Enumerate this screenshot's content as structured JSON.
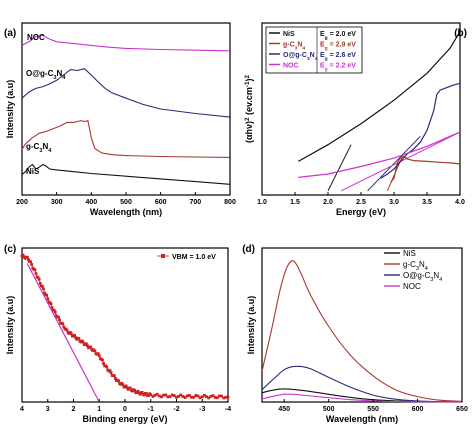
{
  "chart_data": [
    {
      "panel": "(a)",
      "type": "line",
      "xlabel": "Wavelength (nm)",
      "ylabel": "Intensity (a.u)",
      "xlim": [
        200,
        800
      ],
      "xticks": [
        "200",
        "300",
        "400",
        "500",
        "600",
        "700",
        "800"
      ],
      "series": [
        {
          "name": "NOC",
          "color": "#cc33cc",
          "x": [
            200,
            220,
            240,
            260,
            280,
            300,
            350,
            400,
            450,
            500,
            600,
            700,
            800
          ],
          "y": [
            8.35,
            8.55,
            8.85,
            8.9,
            8.7,
            8.55,
            8.45,
            8.35,
            8.25,
            8.18,
            8.12,
            8.08,
            8.05
          ]
        },
        {
          "name": "O@g-C3N4",
          "color": "#2a2a7a",
          "x": [
            200,
            220,
            240,
            260,
            280,
            300,
            320,
            340,
            360,
            380,
            400,
            420,
            440,
            460,
            500,
            550,
            600,
            700,
            800
          ],
          "y": [
            5.4,
            5.75,
            5.95,
            6.05,
            6.2,
            6.4,
            6.7,
            7.0,
            6.95,
            7.05,
            6.7,
            6.3,
            5.95,
            5.7,
            5.4,
            5.05,
            4.8,
            4.55,
            4.35
          ]
        },
        {
          "name": "g-C3N4",
          "color": "#a33a2a",
          "x": [
            200,
            210,
            230,
            250,
            270,
            290,
            310,
            330,
            350,
            370,
            380,
            390,
            400,
            410,
            430,
            460,
            500,
            600,
            700,
            800
          ],
          "y": [
            2.55,
            2.85,
            3.2,
            3.45,
            3.55,
            3.7,
            3.85,
            4.05,
            4.05,
            4.15,
            4.1,
            4.15,
            3.2,
            2.6,
            2.35,
            2.25,
            2.2,
            2.15,
            2.12,
            2.1
          ]
        },
        {
          "name": "NiS",
          "color": "#111111",
          "x": [
            200,
            210,
            220,
            230,
            240,
            250,
            260,
            270,
            280,
            300,
            350,
            400,
            500,
            600,
            700,
            800
          ],
          "y": [
            1.15,
            1.3,
            1.55,
            1.7,
            1.45,
            1.55,
            1.7,
            1.6,
            1.45,
            1.4,
            1.3,
            1.2,
            1.05,
            0.9,
            0.75,
            0.6
          ]
        }
      ],
      "curve_labels": [
        "NOC",
        "O@g-C3N4",
        "g-C3N4",
        "NiS"
      ]
    },
    {
      "panel": "(b)",
      "type": "line",
      "xlabel": "Energy (eV)",
      "ylabel": "(αhν)² (ev.cm⁻¹)²",
      "xlim": [
        1.0,
        4.0
      ],
      "xticks": [
        "1.0",
        "1.5",
        "2.0",
        "2.5",
        "3.0",
        "3.5",
        "4.0"
      ],
      "legend": [
        {
          "name": "NiS",
          "eg": "Eg = 2.0 eV",
          "color": "#111111"
        },
        {
          "name": "g-C3N4",
          "eg": "Eg = 2.9 eV",
          "color": "#a33a2a"
        },
        {
          "name": "O@g-C3N4",
          "eg": "Eg = 2.6 eV",
          "color": "#2a2a7a"
        },
        {
          "name": "NOC",
          "eg": "Eg = 2.2 eV",
          "color": "#cc33cc"
        }
      ],
      "series": [
        {
          "name": "NiS",
          "color": "#111111",
          "x": [
            1.55,
            2.0,
            2.5,
            3.0,
            3.5,
            3.85,
            4.0
          ],
          "y": [
            3.5,
            5.5,
            8.0,
            10.8,
            14.0,
            17.0,
            19.0
          ]
        },
        {
          "name": "g-C3N4",
          "color": "#a33a2a",
          "x": [
            2.95,
            3.0,
            3.05,
            3.1,
            3.15,
            3.2,
            3.3,
            3.5,
            3.7,
            3.9,
            4.0
          ],
          "y": [
            1.0,
            1.5,
            3.3,
            4.0,
            4.1,
            3.8,
            3.6,
            3.5,
            3.4,
            3.3,
            3.2
          ]
        },
        {
          "name": "O@g-C3N4",
          "color": "#2a2a7a",
          "x": [
            2.8,
            2.9,
            3.0,
            3.1,
            3.2,
            3.3,
            3.4,
            3.5,
            3.6,
            3.65,
            3.7,
            3.8,
            3.9,
            4.0
          ],
          "y": [
            1.5,
            2.0,
            2.6,
            3.5,
            4.4,
            5.0,
            5.8,
            7.2,
            9.5,
            11.5,
            12.0,
            12.3,
            12.6,
            12.8
          ]
        },
        {
          "name": "NOC",
          "color": "#cc33cc",
          "x": [
            1.55,
            2.0,
            2.5,
            3.0,
            3.5,
            4.0
          ],
          "y": [
            1.6,
            2.0,
            2.9,
            3.9,
            5.3,
            7.0
          ]
        }
      ],
      "tangent_lines": [
        {
          "name": "NiS",
          "color": "#111111",
          "x": [
            2.0,
            2.35
          ],
          "y": [
            0,
            5.5
          ]
        },
        {
          "name": "g-C3N4",
          "color": "#a33a2a",
          "x": [
            2.9,
            3.15
          ],
          "y": [
            0,
            4.5
          ]
        },
        {
          "name": "O@g-C3N4",
          "color": "#2a2a7a",
          "x": [
            2.6,
            3.4
          ],
          "y": [
            0,
            6.5
          ]
        },
        {
          "name": "NOC",
          "color": "#cc33cc",
          "x": [
            2.2,
            4.0
          ],
          "y": [
            0,
            7.0
          ]
        }
      ]
    },
    {
      "panel": "(c)",
      "type": "scatter",
      "xlabel": "Binding energy (eV)",
      "ylabel": "Intensity (a.u)",
      "xlim": [
        4,
        -4
      ],
      "xticks": [
        "4",
        "3",
        "2",
        "1",
        "0",
        "-1",
        "-2",
        "-3",
        "-4"
      ],
      "legend": "VBM = 1.0 eV",
      "series": [
        {
          "name": "VBM = 1.0 eV",
          "color": "#cc2222",
          "x": [
            4.0,
            3.75,
            3.5,
            3.25,
            3.0,
            2.75,
            2.5,
            2.25,
            2.0,
            1.75,
            1.5,
            1.25,
            1.0,
            0.75,
            0.5,
            0.25,
            0.0,
            -0.25,
            -0.5,
            -0.75,
            -1.0,
            -1.5,
            -2.0,
            -2.5,
            -3.0,
            -3.5,
            -4.0
          ],
          "y": [
            9.5,
            9.3,
            8.5,
            7.6,
            6.7,
            5.9,
            5.2,
            4.6,
            4.3,
            4.0,
            3.7,
            3.4,
            3.0,
            2.3,
            1.8,
            1.3,
            1.0,
            0.8,
            0.62,
            0.52,
            0.45,
            0.4,
            0.38,
            0.36,
            0.35,
            0.34,
            0.33
          ]
        }
      ],
      "fit_line": {
        "color": "#cc33cc",
        "x": [
          3.8,
          1.0
        ],
        "y": [
          9.0,
          0
        ]
      }
    },
    {
      "panel": "(d)",
      "type": "line",
      "xlabel": "Wavelength (nm)",
      "ylabel": "Intensity (a.u)",
      "xlim": [
        425,
        650
      ],
      "xticks": [
        "450",
        "500",
        "550",
        "600",
        "650"
      ],
      "series": [
        {
          "name": "NiS",
          "color": "#111111",
          "x": [
            425,
            440,
            450,
            460,
            475,
            500,
            525,
            550,
            575,
            600,
            625,
            650
          ],
          "y": [
            0.6,
            0.8,
            0.85,
            0.82,
            0.72,
            0.5,
            0.3,
            0.15,
            0.07,
            0.03,
            0.01,
            0.0
          ]
        },
        {
          "name": "g-C3N4",
          "color": "#a33a2a",
          "x": [
            425,
            435,
            445,
            452,
            458,
            463,
            470,
            480,
            500,
            525,
            550,
            575,
            600,
            625,
            650
          ],
          "y": [
            2.0,
            4.5,
            7.2,
            8.6,
            9.15,
            9.0,
            8.2,
            6.9,
            4.9,
            3.0,
            1.7,
            0.8,
            0.35,
            0.12,
            0.04
          ]
        },
        {
          "name": "O@g-C3N4",
          "color": "#2a2a7a",
          "x": [
            425,
            440,
            450,
            460,
            470,
            480,
            500,
            525,
            550,
            575,
            600,
            625,
            650
          ],
          "y": [
            0.8,
            1.6,
            2.1,
            2.3,
            2.3,
            2.15,
            1.6,
            0.95,
            0.45,
            0.18,
            0.07,
            0.02,
            0.0
          ]
        },
        {
          "name": "NOC",
          "color": "#cc33cc",
          "x": [
            425,
            440,
            450,
            460,
            475,
            500,
            525,
            550,
            575,
            600,
            625,
            650
          ],
          "y": [
            0.2,
            0.4,
            0.5,
            0.5,
            0.42,
            0.28,
            0.15,
            0.07,
            0.03,
            0.01,
            0.0,
            0.0
          ]
        }
      ]
    }
  ],
  "labels": {
    "a": {
      "letter": "(a)",
      "xlabel": "Wavelength (nm)",
      "ylabel": "Intensity (a.u)"
    },
    "b": {
      "letter": "(b)",
      "xlabel": "Energy (eV)"
    },
    "c": {
      "letter": "(c)",
      "xlabel": "Binding energy (eV)",
      "ylabel": "Intensity (a.u)",
      "legend": "VBM = 1.0 eV"
    },
    "d": {
      "letter": "(d)",
      "xlabel": "Wavelength (nm)",
      "ylabel": "Intensity (a.u)"
    }
  }
}
